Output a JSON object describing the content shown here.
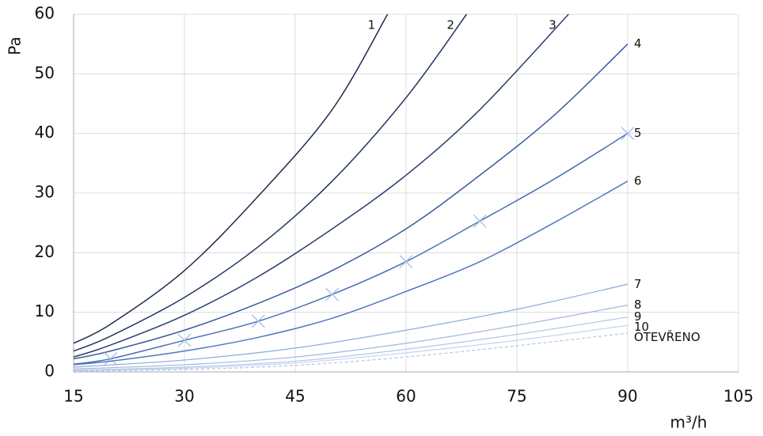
{
  "chart_data": {
    "type": "line",
    "x_label": "m³/h",
    "y_label": "Pa",
    "xlim": [
      15,
      105
    ],
    "xticks": [
      15,
      30,
      45,
      60,
      75,
      90,
      105
    ],
    "ylim": [
      0,
      60
    ],
    "yticks": [
      0,
      10,
      20,
      30,
      40,
      50,
      60
    ],
    "grid": true,
    "series": [
      {
        "name": "1",
        "color": "#1c2b4e",
        "x": [
          15,
          20,
          30,
          40,
          50,
          57.5
        ],
        "values": [
          4.8,
          8,
          17,
          29.5,
          44,
          60
        ]
      },
      {
        "name": "2",
        "color": "#22345c",
        "x": [
          15,
          20,
          30,
          40,
          50,
          60,
          68.2
        ],
        "values": [
          3.5,
          6,
          12.5,
          21,
          32,
          46,
          60
        ]
      },
      {
        "name": "3",
        "color": "#283e6c",
        "x": [
          15,
          20,
          30,
          40,
          50,
          60,
          70,
          82
        ],
        "values": [
          2.5,
          4.5,
          9.5,
          16,
          24,
          33,
          44,
          60
        ]
      },
      {
        "name": "4",
        "color": "#3a5c9c",
        "x": [
          15,
          20,
          30,
          40,
          50,
          60,
          70,
          80,
          90
        ],
        "values": [
          2.2,
          3.5,
          7,
          11.5,
          17,
          24,
          33,
          43,
          55
        ]
      },
      {
        "name": "5",
        "color": "#4a6fb4",
        "marker": "x",
        "x": [
          15,
          20,
          30,
          40,
          50,
          60,
          70,
          80,
          90
        ],
        "values": [
          1.3,
          2.2,
          5.3,
          8.5,
          13,
          18.5,
          25.3,
          32.3,
          40
        ]
      },
      {
        "name": "6",
        "color": "#4f78c0",
        "x": [
          15,
          20,
          30,
          40,
          50,
          60,
          70,
          80,
          90
        ],
        "values": [
          1.2,
          1.8,
          3.5,
          5.8,
          9,
          13.5,
          18.5,
          25,
          32
        ]
      },
      {
        "name": "7",
        "color": "#8ea9da",
        "x": [
          15,
          30,
          45,
          60,
          75,
          90
        ],
        "values": [
          0.8,
          2,
          4,
          7,
          10.5,
          14.7
        ]
      },
      {
        "name": "8",
        "color": "#9fb6e0",
        "x": [
          15,
          30,
          45,
          60,
          75,
          90
        ],
        "values": [
          0.5,
          1.2,
          2.5,
          4.8,
          7.8,
          11.2
        ]
      },
      {
        "name": "9",
        "color": "#b2c5e8",
        "x": [
          15,
          30,
          45,
          60,
          75,
          90
        ],
        "values": [
          0.3,
          0.8,
          1.8,
          3.8,
          6.3,
          9.2
        ]
      },
      {
        "name": "10",
        "color": "#c4d3ee",
        "x": [
          15,
          30,
          45,
          60,
          75,
          90
        ],
        "values": [
          0.2,
          0.6,
          1.5,
          3.2,
          5.3,
          7.8
        ]
      },
      {
        "name": "OTEVŘENO",
        "color": "#b2c5e8",
        "dashed": true,
        "x": [
          15,
          30,
          45,
          60,
          75,
          90
        ],
        "values": [
          0.1,
          0.4,
          1.1,
          2.5,
          4.4,
          6.5
        ]
      }
    ]
  }
}
